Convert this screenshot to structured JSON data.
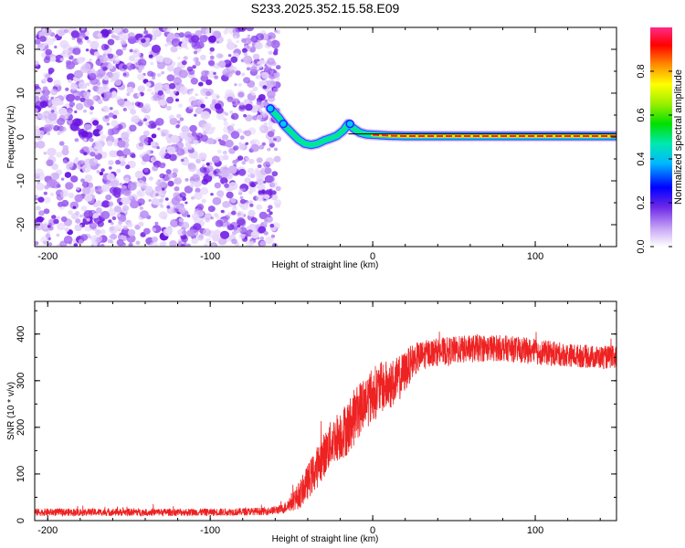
{
  "title": "S233.2025.352.15.58.E09",
  "colors": {
    "noise": "#8a3cf0",
    "snr_line": "#ee2222",
    "axis": "#000000"
  },
  "chart_data": [
    {
      "type": "heatmap",
      "name": "spectrogram",
      "xlabel": "Height of straight line (km)",
      "ylabel": "Frequency (Hz)",
      "xlim": [
        -208,
        150
      ],
      "ylim": [
        -25,
        25
      ],
      "xticks": [
        -200,
        -100,
        0,
        100
      ],
      "yticks": [
        -20,
        -10,
        0,
        10,
        20
      ],
      "noise_region_x": [
        -208,
        -58
      ],
      "signal_trace": {
        "x": [
          -63,
          -58,
          -54,
          -50,
          -46,
          -42,
          -38,
          -34,
          -30,
          -26,
          -22,
          -18,
          -15,
          -12,
          -8,
          -4,
          0,
          5,
          10,
          20,
          40,
          60,
          80,
          100,
          120,
          150
        ],
        "freq": [
          6.5,
          4.5,
          2.5,
          1.0,
          -0.5,
          -1.5,
          -1.8,
          -1.5,
          -0.8,
          -0.3,
          0.3,
          1.5,
          3.0,
          2.0,
          1.0,
          0.6,
          0.5,
          0.4,
          0.3,
          0.2,
          0.2,
          0.2,
          0.2,
          0.2,
          0.2,
          0.2
        ]
      },
      "colorbar": {
        "label": "Normalized spectral amplitude",
        "range": [
          0,
          1
        ],
        "ticks": [
          0.0,
          0.2,
          0.4,
          0.6,
          0.8
        ],
        "tick_labels": [
          "0.0",
          "0.2",
          "0.4",
          "0.6",
          "0.8"
        ]
      }
    },
    {
      "type": "line",
      "name": "snr",
      "xlabel": "Height of straight line (km)",
      "ylabel": "SNR (10 * v/v)",
      "xlim": [
        -208,
        150
      ],
      "ylim": [
        0,
        470
      ],
      "xticks": [
        -200,
        -100,
        0,
        100
      ],
      "yticks": [
        0,
        100,
        200,
        300,
        400
      ],
      "envelope": {
        "x": [
          -208,
          -100,
          -65,
          -55,
          -45,
          -35,
          -25,
          -15,
          -10,
          -5,
          0,
          5,
          10,
          15,
          20,
          25,
          35,
          50,
          65,
          80,
          100,
          120,
          140,
          150
        ],
        "mean": [
          18,
          18,
          20,
          25,
          55,
          110,
          170,
          200,
          230,
          255,
          270,
          285,
          290,
          300,
          320,
          345,
          360,
          365,
          370,
          370,
          362,
          355,
          350,
          350
        ],
        "spread": [
          8,
          8,
          8,
          10,
          30,
          45,
          50,
          60,
          60,
          60,
          60,
          55,
          55,
          50,
          45,
          35,
          30,
          30,
          30,
          28,
          28,
          25,
          25,
          25
        ]
      }
    }
  ]
}
